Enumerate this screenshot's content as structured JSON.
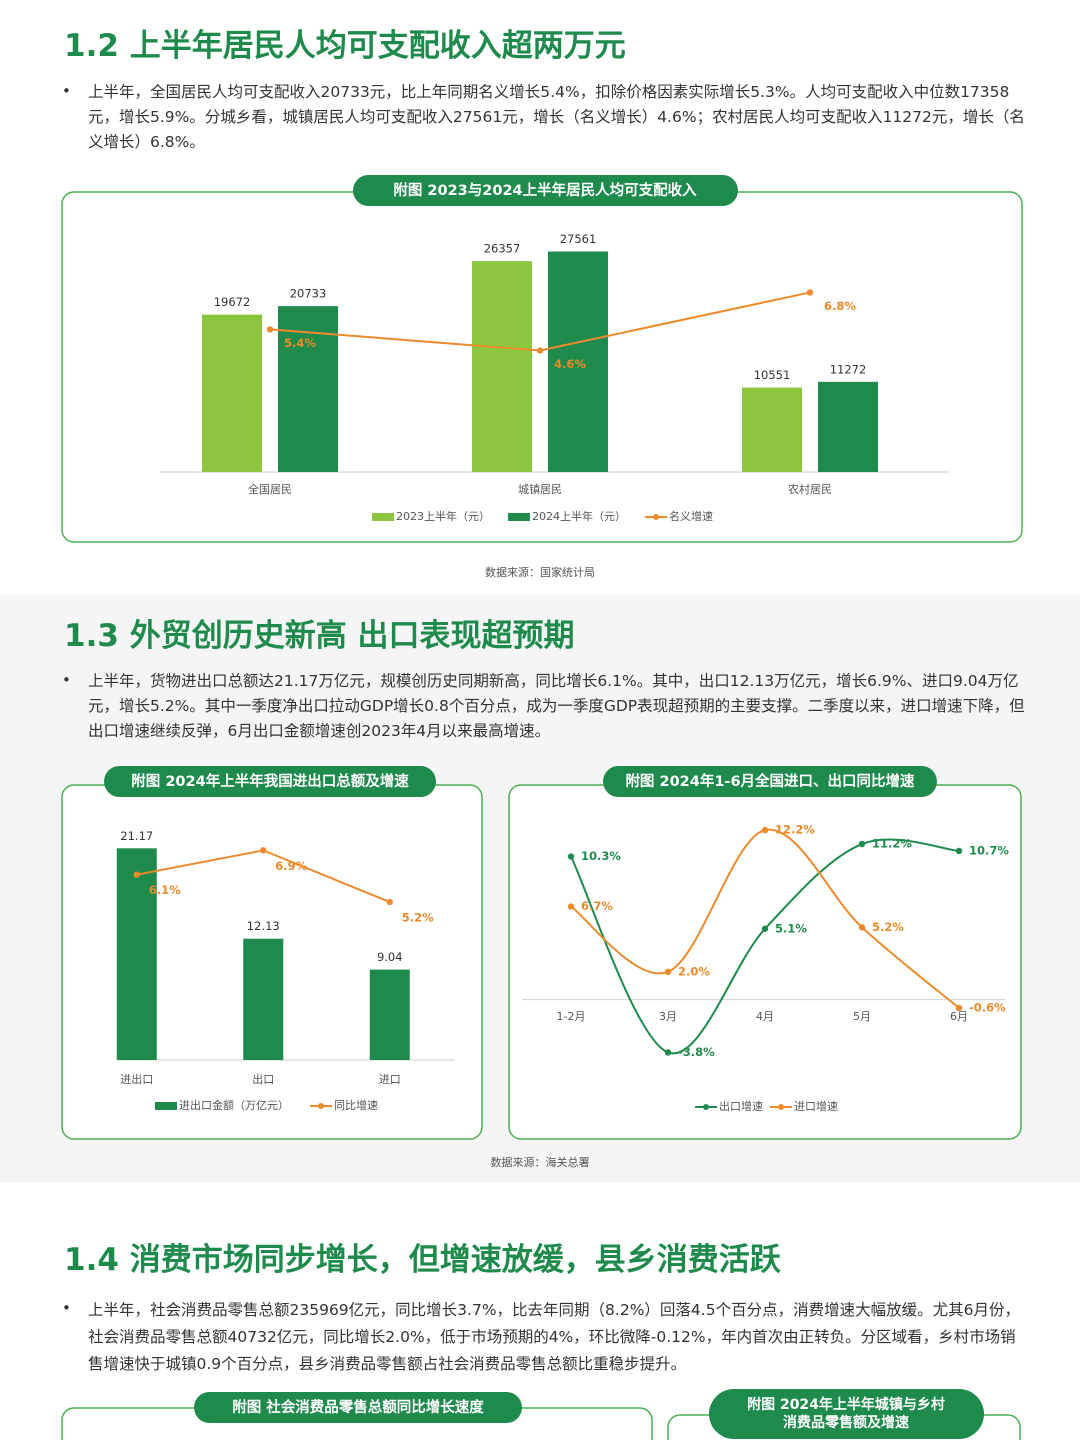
{
  "sections": [
    {
      "title": "1.2 上半年居民人均可支配收入超两万元",
      "paragraph": "上半年，全国居民人均可支配收入20733元，比上年同期名义增长5.4%，扣除价格因素实际增长5.3%。人均可支配收入中位数17358元，增长5.9%。分城乡看，城镇居民人均可支配收入27561元，增长（名义增长）4.6%；农村居民人均可支配收入11272元，增长（名义增长）6.8%。",
      "source": "数据来源：国家统计局"
    },
    {
      "title": "1.3  外贸创历史新高 出口表现超预期",
      "paragraph": "上半年，货物进出口总额达21.17万亿元，规模创历史同期新高，同比增长6.1%。其中，出口12.13万亿元，增长6.9%、进口9.04万亿元，增长5.2%。其中一季度净出口拉动GDP增长0.8个百分点，成为一季度GDP表现超预期的主要支撑。二季度以来，进口增速下降，但出口增速继续反弹，6月出口金额增速创2023年4月以来最高增速。",
      "source": "数据来源：海关总署"
    },
    {
      "title": "1.4  消费市场同步增长，但增速放缓，县乡消费活跃",
      "paragraph": "上半年，社会消费品零售总额235969亿元，同比增长3.7%，比去年同期（8.2%）回落4.5个百分点，消费增速大幅放缓。尤其6月份，社会消费品零售总额40732亿元，同比增长2.0%，低于市场预期的4%，环比微降-0.12%，年内首次由正转负。分区域看，乡村市场销售增速快于城镇0.9个百分点，县乡消费品零售额占社会消费品零售总额比重稳步提升。",
      "panels": [
        "附图 社会消费品零售总额同比增长速度",
        [
          "附图 2024年上半年城镇与乡村",
          "消费品零售额及增速"
        ]
      ]
    }
  ],
  "chart_data": [
    {
      "type": "bar",
      "title": "附图 2023与2024上半年居民人均可支配收入",
      "categories": [
        "全国居民",
        "城镇居民",
        "农村居民"
      ],
      "ylim": [
        0,
        34000
      ],
      "y2lim": [
        0,
        10.3
      ],
      "legend": "bottom",
      "series": [
        {
          "name": "2023上半年（元）",
          "color": "#8cc63f",
          "values": [
            19672,
            26357,
            10551
          ]
        },
        {
          "name": "2024上半年（元）",
          "color": "#1e8a4c",
          "values": [
            20733,
            27561,
            11272
          ]
        },
        {
          "name": "名义增速",
          "type": "line",
          "axis": "y2",
          "color": "#ec8a2b",
          "values": [
            5.4,
            4.6,
            6.8
          ],
          "value_labels": [
            "5.4%",
            "4.6%",
            "6.8%"
          ]
        }
      ]
    },
    {
      "type": "bar",
      "title": "附图 2024年上半年我国进出口总额及增速",
      "categories": [
        "进出口",
        "出口",
        "进口"
      ],
      "ylim": [
        0,
        24
      ],
      "y2lim": [
        0,
        7.9
      ],
      "legend": "bottom",
      "series": [
        {
          "name": "进出口金额（万亿元）",
          "color": "#1e8a4c",
          "values": [
            21.17,
            12.13,
            9.04
          ]
        },
        {
          "name": "同比增速",
          "type": "line",
          "axis": "y2",
          "color": "#ec8a2b",
          "values": [
            6.1,
            6.9,
            5.2
          ],
          "value_labels": [
            "6.1%",
            "6.9%",
            "5.2%"
          ]
        }
      ]
    },
    {
      "type": "line",
      "title": "附图 2024年1-6月全国进口、出口同比增速",
      "categories": [
        "1-2月",
        "3月",
        "4月",
        "5月",
        "6月"
      ],
      "ylim": [
        -6,
        13
      ],
      "smooth": true,
      "legend": "bottom",
      "series": [
        {
          "name": "出口增速",
          "color": "#1e8a4c",
          "values": [
            10.3,
            -3.8,
            5.1,
            11.2,
            10.7
          ],
          "value_labels": [
            "10.3%",
            "-3.8%",
            "5.1%",
            "11.2%",
            "10.7%"
          ]
        },
        {
          "name": "进口增速",
          "color": "#ec8a2b",
          "values": [
            6.7,
            2.0,
            12.2,
            5.2,
            -0.6
          ],
          "value_labels": [
            "6.7%",
            "2.0%",
            "12.2%",
            "5.2%",
            "-0.6%"
          ]
        }
      ]
    }
  ]
}
